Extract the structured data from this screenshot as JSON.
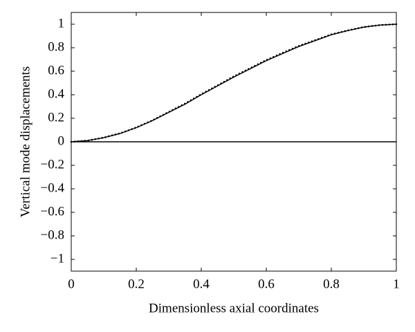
{
  "chart_data": {
    "type": "line",
    "xlabel": "Dimensionless axial coordinates",
    "ylabel": "Vertical mode displacements",
    "xlim": [
      0,
      1
    ],
    "ylim": [
      -1.1,
      1.1
    ],
    "xticks": [
      0,
      0.2,
      0.4,
      0.6,
      0.8,
      1
    ],
    "yticks": [
      {
        "value": -1,
        "label": "−1"
      },
      {
        "value": -0.8,
        "label": "−0.8"
      },
      {
        "value": -0.6,
        "label": "−0.6"
      },
      {
        "value": -0.4,
        "label": "−0.4"
      },
      {
        "value": -0.2,
        "label": "−0.2"
      },
      0,
      0.2,
      0.4,
      0.6,
      0.8,
      1
    ],
    "grid": false,
    "series": [
      {
        "color": "#000000",
        "style": "solid",
        "x": [
          0,
          0.05,
          0.1,
          0.15,
          0.2,
          0.25,
          0.3,
          0.35,
          0.4,
          0.45,
          0.5,
          0.55,
          0.6,
          0.65,
          0.7,
          0.75,
          0.8,
          0.85,
          0.9,
          0.95,
          1
        ],
        "values": [
          0,
          0.01,
          0.035,
          0.07,
          0.12,
          0.18,
          0.25,
          0.32,
          0.4,
          0.475,
          0.55,
          0.62,
          0.69,
          0.75,
          0.81,
          0.86,
          0.91,
          0.945,
          0.975,
          0.993,
          1
        ]
      },
      {
        "color": "#000000",
        "style": "dotted",
        "x": [
          0,
          0.05,
          0.1,
          0.15,
          0.2,
          0.25,
          0.3,
          0.35,
          0.4,
          0.45,
          0.5,
          0.55,
          0.6,
          0.65,
          0.7,
          0.75,
          0.8,
          0.85,
          0.9,
          0.95,
          1
        ],
        "values": [
          0,
          0.01,
          0.036,
          0.072,
          0.122,
          0.183,
          0.254,
          0.325,
          0.405,
          0.48,
          0.556,
          0.626,
          0.695,
          0.756,
          0.815,
          0.864,
          0.913,
          0.947,
          0.976,
          0.993,
          1
        ]
      },
      {
        "color": "#000000",
        "style": "solid",
        "x": [
          0,
          1
        ],
        "values": [
          0,
          0
        ]
      }
    ]
  }
}
